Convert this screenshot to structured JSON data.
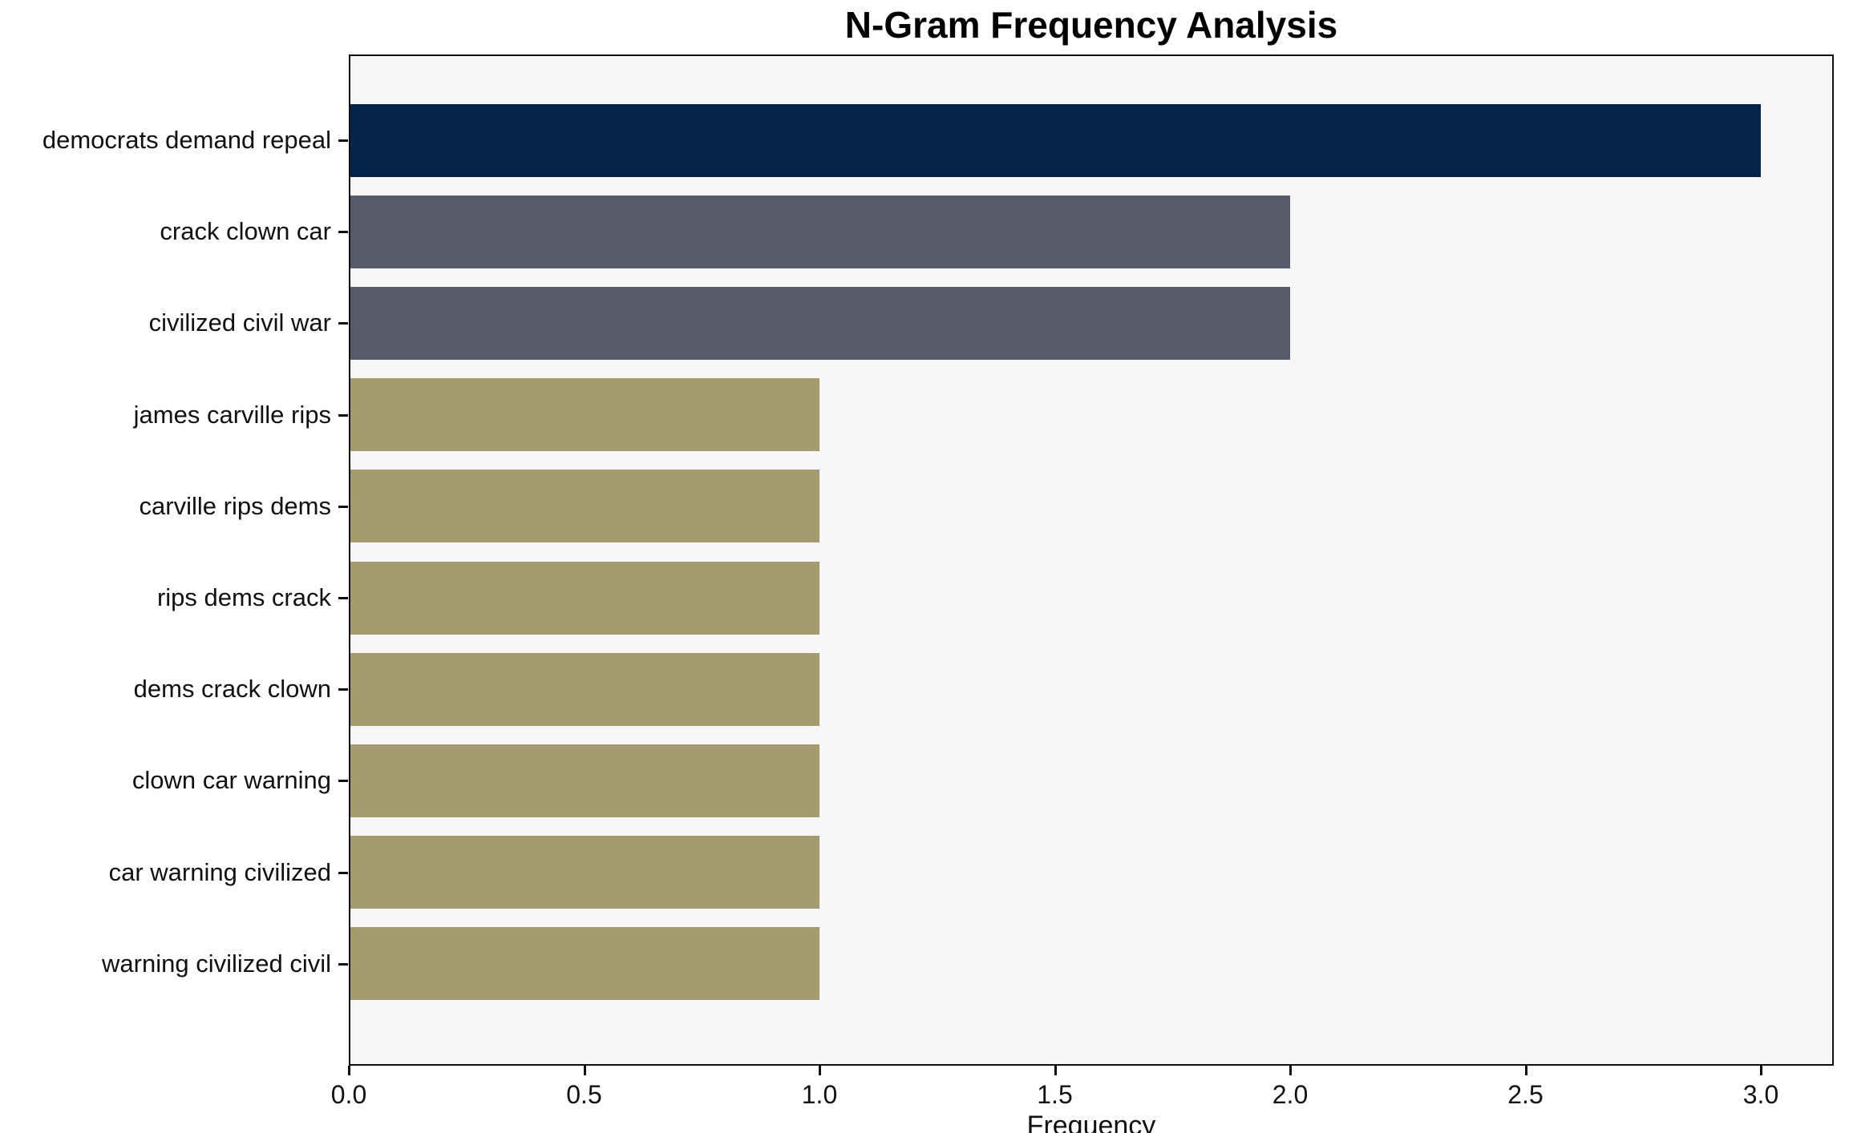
{
  "title": "N-Gram Frequency Analysis",
  "chart_data": {
    "type": "bar",
    "orientation": "horizontal",
    "title": "N-Gram Frequency Analysis",
    "xlabel": "Frequency",
    "ylabel": "",
    "categories": [
      "democrats demand repeal",
      "crack clown car",
      "civilized civil war",
      "james carville rips",
      "carville rips dems",
      "rips dems crack",
      "dems crack clown",
      "clown car warning",
      "car warning civilized",
      "warning civilized civil"
    ],
    "values": [
      3,
      2,
      2,
      1,
      1,
      1,
      1,
      1,
      1,
      1
    ],
    "bar_colors": [
      "#052349",
      "#575c6a",
      "#575c6a",
      "#a49b70",
      "#a49b70",
      "#a49b70",
      "#a49b70",
      "#a49b70",
      "#a49b70",
      "#a49b70"
    ],
    "xlim": [
      0.0,
      3.155
    ],
    "xticks": [
      0.0,
      0.5,
      1.0,
      1.5,
      2.0,
      2.5,
      3.0
    ],
    "xtick_labels": [
      "0.0",
      "0.5",
      "1.0",
      "1.5",
      "2.0",
      "2.5",
      "3.0"
    ],
    "grid": false,
    "legend": null,
    "plot_background": "#f7f7f7",
    "figure_background": "#ffffff",
    "spine_color": "#0f0f0f"
  }
}
